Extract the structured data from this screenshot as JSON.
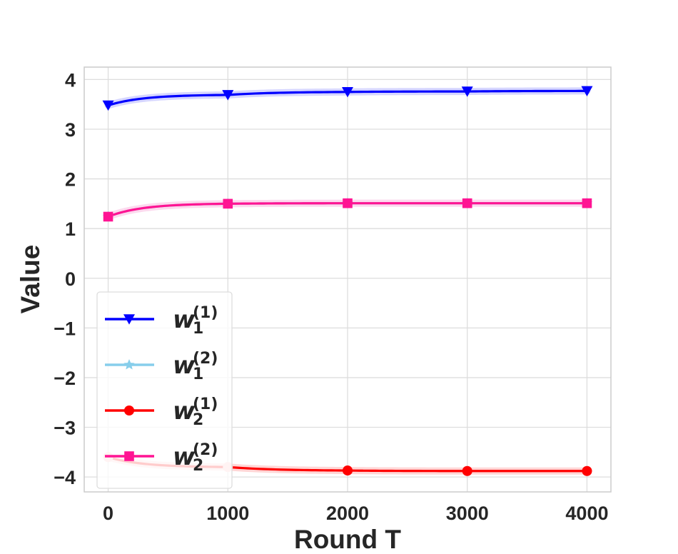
{
  "chart_data": {
    "type": "line",
    "title": "",
    "xlabel": "Round T",
    "ylabel": "Value",
    "xlim": [
      -200,
      4200
    ],
    "ylim": [
      -4.3,
      4.25
    ],
    "x_ticks": [
      0,
      1000,
      2000,
      3000,
      4000
    ],
    "x_tick_labels": [
      "0",
      "1000",
      "2000",
      "3000",
      "4000"
    ],
    "y_ticks": [
      4,
      3,
      2,
      1,
      0,
      -1,
      -2,
      -3,
      -4
    ],
    "y_tick_labels": [
      "4",
      "3",
      "2",
      "1",
      "0",
      "−1",
      "−2",
      "−3",
      "−4"
    ],
    "grid": true,
    "legend_position": "lower-left",
    "series": [
      {
        "key": "w1_1",
        "name_base": "w",
        "name_sub": "1",
        "name_sup": "(1)",
        "color": "#0000ff",
        "marker": "triangle-down",
        "x": [
          0,
          1000,
          2000,
          3000,
          4000
        ],
        "y": [
          3.48,
          3.69,
          3.75,
          3.76,
          3.77
        ]
      },
      {
        "key": "w1_2",
        "name_base": "w",
        "name_sub": "1",
        "name_sup": "(2)",
        "color": "#87ceeb",
        "marker": "star",
        "x": [
          0,
          1000,
          2000,
          3000,
          4000
        ],
        "y": [
          1.24,
          1.5,
          1.51,
          1.51,
          1.51
        ]
      },
      {
        "key": "w2_1",
        "name_base": "w",
        "name_sub": "2",
        "name_sup": "(1)",
        "color": "#ff0000",
        "marker": "circle",
        "x": [
          0,
          1000,
          2000,
          3000,
          4000
        ],
        "y": [
          -3.6,
          -3.8,
          -3.87,
          -3.88,
          -3.88
        ]
      },
      {
        "key": "w2_2",
        "name_base": "w",
        "name_sub": "2",
        "name_sup": "(2)",
        "color": "#ff1493",
        "marker": "square",
        "x": [
          0,
          1000,
          2000,
          3000,
          4000
        ],
        "y": [
          1.24,
          1.5,
          1.51,
          1.51,
          1.51
        ]
      }
    ]
  }
}
